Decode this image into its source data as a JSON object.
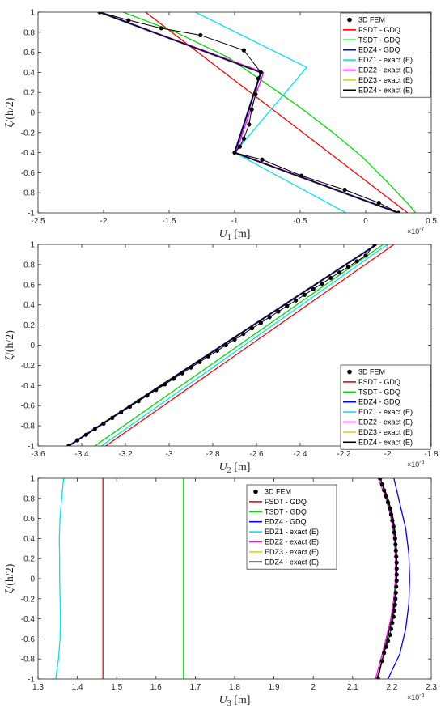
{
  "chart_data": [
    {
      "type": "line",
      "xlabel": "U1 [m]",
      "ylabel": "ζ/(h/2)",
      "xlim": [
        -2.5,
        0.5
      ],
      "ylim": [
        -1,
        1
      ],
      "x_multiplier": "×10^-7",
      "x_ticks": [
        "-2.5",
        "-2",
        "-1.5",
        "-1",
        "-0.5",
        "0",
        "0.5"
      ],
      "y_ticks": [
        "-1",
        "-0.8",
        "-0.6",
        "-0.4",
        "-0.2",
        "0",
        "0.2",
        "0.4",
        "0.6",
        "0.8",
        "1"
      ],
      "legend_position": "top-right",
      "series": [
        {
          "name": "3D FEM",
          "color": "#000000",
          "style": "dots",
          "x": [
            -2.03,
            -1.81,
            -1.56,
            -1.26,
            -0.93,
            -0.8,
            -0.82,
            -0.84,
            -0.87,
            -0.89,
            -0.93,
            -0.96,
            -1.0,
            -0.79,
            -0.49,
            -0.16,
            0.1,
            0.25
          ],
          "y": [
            1,
            0.92,
            0.84,
            0.77,
            0.62,
            0.4,
            0.34,
            0.18,
            0.03,
            -0.12,
            -0.26,
            -0.34,
            -0.4,
            -0.47,
            -0.63,
            -0.77,
            -0.9,
            -1
          ]
        },
        {
          "name": "FSDT - GDQ",
          "color": "#ff0000",
          "style": "line",
          "x": [
            -1.68,
            0.32
          ],
          "y": [
            1,
            -1
          ]
        },
        {
          "name": "TSDT - GDQ",
          "color": "#00dd00",
          "style": "line",
          "x": [
            -1.85,
            -1.45,
            -1.05,
            -0.75,
            -0.5,
            -0.25,
            -0.02,
            0.17,
            0.33,
            0.38
          ],
          "y": [
            1,
            0.8,
            0.55,
            0.28,
            0.05,
            -0.2,
            -0.45,
            -0.7,
            -0.92,
            -1
          ]
        },
        {
          "name": "EDZ4 - GDQ",
          "color": "#0000ff",
          "style": "line",
          "x": [
            -2.03,
            -0.8,
            -1.0,
            0.25
          ],
          "y": [
            1,
            0.4,
            -0.4,
            -1
          ]
        },
        {
          "name": "EDZ1 - exact (E)",
          "color": "#00e5ee",
          "style": "line",
          "x": [
            -1.3,
            -0.45,
            -1.0,
            -0.15
          ],
          "y": [
            1,
            0.45,
            -0.4,
            -1
          ]
        },
        {
          "name": "EDZ2 - exact (E)",
          "color": "#ff00ff",
          "style": "line",
          "x": [
            -2.03,
            -0.78,
            -0.99,
            0.25
          ],
          "y": [
            1,
            0.4,
            -0.4,
            -1
          ]
        },
        {
          "name": "EDZ3 - exact (E)",
          "color": "#e6d200",
          "style": "line",
          "x": [
            -2.03,
            -0.8,
            -1.0,
            0.25
          ],
          "y": [
            1,
            0.4,
            -0.4,
            -1
          ]
        },
        {
          "name": "EDZ4 - exact (E)",
          "color": "#000000",
          "style": "line",
          "x": [
            -2.03,
            -0.8,
            -1.0,
            0.25
          ],
          "y": [
            1,
            0.4,
            -0.4,
            -1
          ]
        }
      ]
    },
    {
      "type": "line",
      "xlabel": "U2 [m]",
      "ylabel": "ζ/(h/2)",
      "xlim": [
        -3.6,
        -1.8
      ],
      "ylim": [
        -1,
        1
      ],
      "x_multiplier": "×10^-6",
      "x_ticks": [
        "-3.6",
        "-3.4",
        "-3.2",
        "-3",
        "-2.8",
        "-2.6",
        "-2.4",
        "-2.2",
        "-2",
        "-1.8"
      ],
      "y_ticks": [
        "-1",
        "-0.8",
        "-0.6",
        "-0.4",
        "-0.2",
        "0",
        "0.2",
        "0.4",
        "0.6",
        "0.8",
        "1"
      ],
      "legend_position": "bottom-right",
      "series": [
        {
          "name": "3D FEM",
          "color": "#000000",
          "style": "dots",
          "x": [
            -3.46,
            -3.42,
            -3.38,
            -3.34,
            -3.3,
            -3.26,
            -3.22,
            -3.18,
            -3.14,
            -3.1,
            -3.06,
            -3.02,
            -2.98,
            -2.94,
            -2.9,
            -2.86,
            -2.82,
            -2.78,
            -2.74,
            -2.7,
            -2.66,
            -2.62,
            -2.58,
            -2.54,
            -2.5,
            -2.46,
            -2.42,
            -2.38,
            -2.34,
            -2.3,
            -2.26,
            -2.22,
            -2.18,
            -2.14,
            -2.1,
            -2.06
          ],
          "y": [
            -1,
            -0.944,
            -0.889,
            -0.833,
            -0.778,
            -0.722,
            -0.667,
            -0.611,
            -0.556,
            -0.5,
            -0.444,
            -0.389,
            -0.333,
            -0.278,
            -0.222,
            -0.167,
            -0.111,
            -0.056,
            0,
            0.056,
            0.111,
            0.167,
            0.222,
            0.278,
            0.333,
            0.389,
            0.444,
            0.5,
            0.556,
            0.611,
            0.667,
            0.722,
            0.778,
            0.833,
            0.889,
            1
          ]
        },
        {
          "name": "FSDT - GDQ",
          "color": "#ff0000",
          "style": "line",
          "x": [
            -3.29,
            -1.97
          ],
          "y": [
            -1,
            1
          ]
        },
        {
          "name": "TSDT - GDQ",
          "color": "#00dd00",
          "style": "line",
          "x": [
            -3.34,
            -2.02
          ],
          "y": [
            -1,
            1
          ]
        },
        {
          "name": "EDZ4 - GDQ",
          "color": "#0000ff",
          "style": "line",
          "x": [
            -3.46,
            -2.05
          ],
          "y": [
            -1,
            1
          ]
        },
        {
          "name": "EDZ1 - exact (E)",
          "color": "#00e5ee",
          "style": "line",
          "x": [
            -3.31,
            -2.0
          ],
          "y": [
            -1,
            1
          ]
        },
        {
          "name": "EDZ2 - exact (E)",
          "color": "#ff00ff",
          "style": "line",
          "x": [
            -3.46,
            -2.05
          ],
          "y": [
            -1,
            1
          ]
        },
        {
          "name": "EDZ3 - exact (E)",
          "color": "#e6d200",
          "style": "line",
          "x": [
            -3.46,
            -2.05
          ],
          "y": [
            -1,
            1
          ]
        },
        {
          "name": "EDZ4 - exact (E)",
          "color": "#000000",
          "style": "line",
          "x": [
            -3.46,
            -2.05
          ],
          "y": [
            -1,
            1
          ]
        }
      ]
    },
    {
      "type": "line",
      "xlabel": "U3 [m]",
      "ylabel": "ζ/(h/2)",
      "xlim": [
        1.3,
        2.3
      ],
      "ylim": [
        -1,
        1
      ],
      "x_multiplier": "×10^-6",
      "x_ticks": [
        "1.3",
        "1.4",
        "1.5",
        "1.6",
        "1.7",
        "1.8",
        "1.9",
        "2",
        "2.1",
        "2.2",
        "2.3"
      ],
      "y_ticks": [
        "-1",
        "-0.8",
        "-0.6",
        "-0.4",
        "-0.2",
        "0",
        "0.2",
        "0.4",
        "0.6",
        "0.8",
        "1"
      ],
      "legend_position": "top-center",
      "series": [
        {
          "name": "3D FEM",
          "color": "#000000",
          "style": "dots",
          "x": [
            2.17,
            2.175,
            2.18,
            2.185,
            2.19,
            2.195,
            2.198,
            2.201,
            2.204,
            2.206,
            2.208,
            2.209,
            2.21,
            2.211,
            2.212,
            2.212,
            2.212,
            2.212,
            2.211,
            2.21,
            2.209,
            2.208,
            2.206,
            2.204,
            2.201,
            2.198,
            2.195,
            2.19,
            2.185,
            2.18,
            2.175,
            2.165
          ],
          "y": [
            1,
            0.94,
            0.88,
            0.82,
            0.76,
            0.7,
            0.64,
            0.58,
            0.52,
            0.46,
            0.4,
            0.34,
            0.28,
            0.22,
            0.16,
            0.1,
            0.04,
            -0.02,
            -0.08,
            -0.14,
            -0.2,
            -0.26,
            -0.32,
            -0.38,
            -0.44,
            -0.5,
            -0.56,
            -0.62,
            -0.68,
            -0.74,
            -0.82,
            -1
          ]
        },
        {
          "name": "FSDT - GDQ",
          "color": "#ff0000",
          "style": "line",
          "x": [
            1.465,
            1.465
          ],
          "y": [
            -1,
            1
          ]
        },
        {
          "name": "TSDT - GDQ",
          "color": "#00dd00",
          "style": "line",
          "x": [
            1.67,
            1.67
          ],
          "y": [
            -1,
            1
          ]
        },
        {
          "name": "EDZ4 - GDQ",
          "color": "#0000ff",
          "style": "line",
          "x": [
            2.205,
            2.22,
            2.235,
            2.243,
            2.245,
            2.243,
            2.235,
            2.22,
            2.19
          ],
          "y": [
            1,
            0.75,
            0.5,
            0.25,
            0,
            -0.25,
            -0.5,
            -0.75,
            -1
          ]
        },
        {
          "name": "EDZ1 - exact (E)",
          "color": "#00e5ee",
          "style": "line",
          "x": [
            1.365,
            1.36,
            1.356,
            1.354,
            1.355,
            1.355,
            1.356,
            1.357,
            1.356,
            1.352,
            1.345
          ],
          "y": [
            1,
            0.8,
            0.6,
            0.4,
            0.2,
            0,
            -0.2,
            -0.4,
            -0.6,
            -0.8,
            -1
          ]
        },
        {
          "name": "EDZ2 - exact (E)",
          "color": "#ff00ff",
          "style": "line",
          "x": [
            2.165,
            2.185,
            2.198,
            2.206,
            2.209,
            2.209,
            2.205,
            2.197,
            2.185,
            2.172,
            2.158
          ],
          "y": [
            1,
            0.8,
            0.6,
            0.4,
            0.2,
            0,
            -0.2,
            -0.4,
            -0.6,
            -0.8,
            -1
          ]
        },
        {
          "name": "EDZ3 - exact (E)",
          "color": "#e6d200",
          "style": "line",
          "x": [
            2.17,
            2.19,
            2.203,
            2.21,
            2.212,
            2.212,
            2.208,
            2.2,
            2.188,
            2.176,
            2.162
          ],
          "y": [
            1,
            0.8,
            0.6,
            0.4,
            0.2,
            0,
            -0.2,
            -0.4,
            -0.6,
            -0.8,
            -1
          ]
        },
        {
          "name": "EDZ4 - exact (E)",
          "color": "#000000",
          "style": "line",
          "x": [
            2.17,
            2.19,
            2.203,
            2.21,
            2.212,
            2.212,
            2.208,
            2.2,
            2.188,
            2.176,
            2.162
          ],
          "y": [
            1,
            0.8,
            0.6,
            0.4,
            0.2,
            0,
            -0.2,
            -0.4,
            -0.6,
            -0.8,
            -1
          ]
        }
      ]
    }
  ]
}
